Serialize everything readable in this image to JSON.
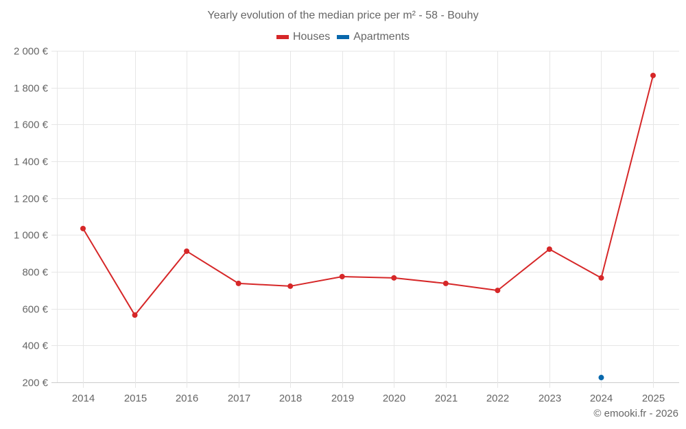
{
  "title": "Yearly evolution of the median price per m² - 58 - Bouhy",
  "legend": [
    {
      "label": "Houses",
      "color": "#d62728"
    },
    {
      "label": "Apartments",
      "color": "#0868ac"
    }
  ],
  "credit": "© emooki.fr - 2026",
  "chart_data": {
    "type": "line",
    "title": "Yearly evolution of the median price per m² - 58 - Bouhy",
    "xlabel": "",
    "ylabel": "",
    "categories": [
      "2014",
      "2015",
      "2016",
      "2017",
      "2018",
      "2019",
      "2020",
      "2021",
      "2022",
      "2023",
      "2024",
      "2025"
    ],
    "series": [
      {
        "name": "Houses",
        "color": "#d62728",
        "values": [
          1035,
          565,
          912,
          737,
          722,
          774,
          767,
          737,
          699,
          923,
          767,
          1866
        ]
      },
      {
        "name": "Apartments",
        "color": "#0868ac",
        "values": [
          null,
          null,
          null,
          null,
          null,
          null,
          null,
          null,
          null,
          null,
          226,
          null
        ]
      }
    ],
    "ylim": [
      200,
      2000
    ],
    "yticks": [
      200,
      400,
      600,
      800,
      1000,
      1200,
      1400,
      1600,
      1800,
      2000
    ],
    "ytick_labels": [
      "200 €",
      "400 €",
      "600 €",
      "800 €",
      "1 000 €",
      "1 200 €",
      "1 400 €",
      "1 600 €",
      "1 800 €",
      "2 000 €"
    ],
    "grid": true,
    "legend_position": "top"
  }
}
